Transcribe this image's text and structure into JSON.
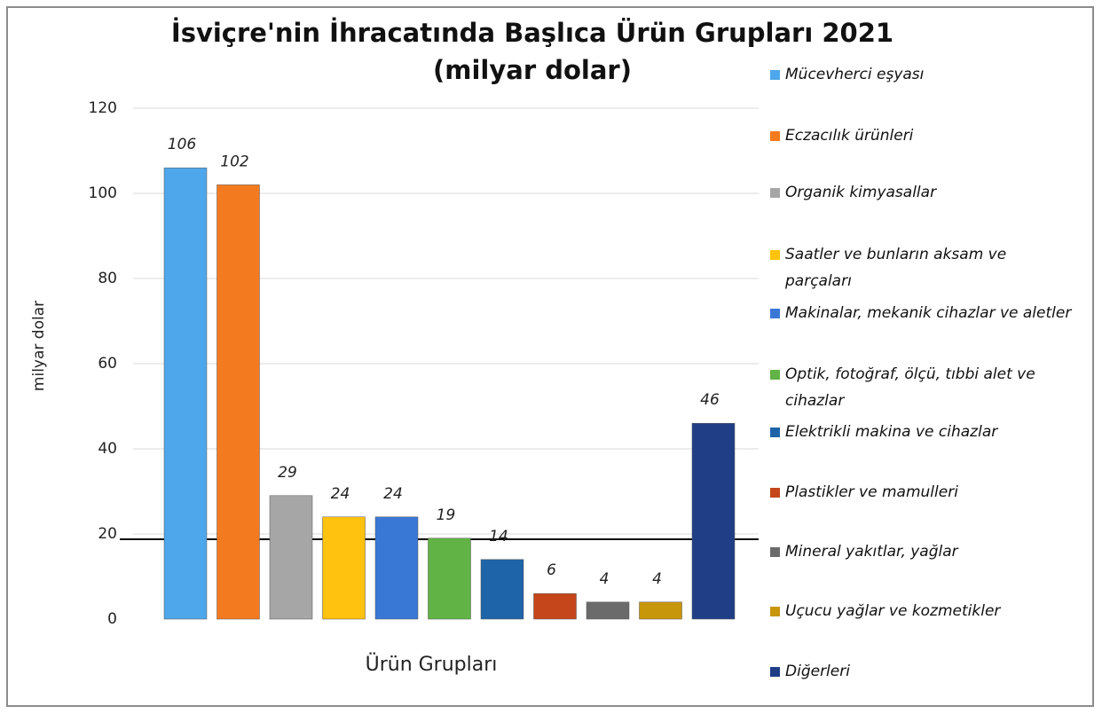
{
  "chart_data": {
    "type": "bar",
    "title": "İsviçre'nin İhracatında Başlıca Ürün Grupları 2021 (milyar dolar)",
    "x_label": "Ürün Grupları",
    "y_label": "milyar dolar",
    "categories": [
      "Mücevherci eşyası",
      "Eczacılık ürünleri",
      "Organik kimyasallar",
      "Saatler ve bunların aksam ve parçaları",
      "Makinalar, mekanik cihazlar ve aletler",
      "Optik, fotoğraf, ölçü, tıbbi alet ve cihazlar",
      "Elektrikli makina ve cihazlar",
      "Plastikler ve mamulleri",
      "Mineral yakıtlar, yağlar",
      "Uçucu yağlar ve kozmetikler",
      "Diğerleri"
    ],
    "values": [
      106,
      102,
      29,
      24,
      24,
      19,
      14,
      6,
      4,
      4,
      46
    ],
    "colors": [
      "#4ea7ea",
      "#f47a20",
      "#a6a6a6",
      "#ffc20e",
      "#3a78d6",
      "#62b345",
      "#1e64a8",
      "#c4461a",
      "#6b6b6b",
      "#c8960a",
      "#1f3e86"
    ],
    "ylim": [
      0,
      120
    ],
    "yticks": [
      0,
      20,
      40,
      60,
      80,
      100,
      120
    ],
    "grid": true
  }
}
